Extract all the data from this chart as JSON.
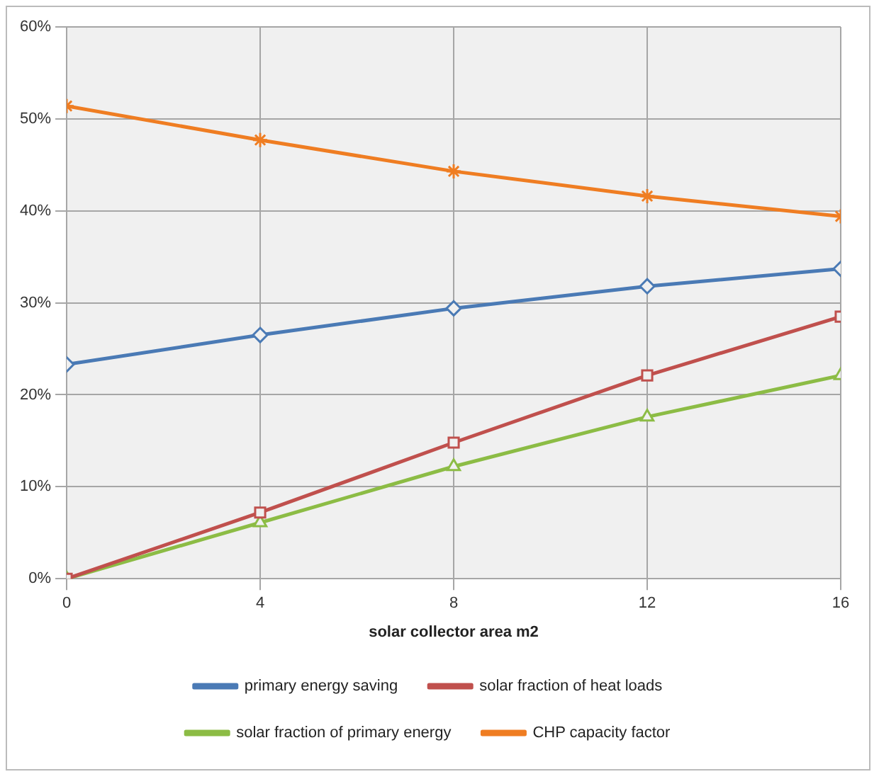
{
  "chart_data": {
    "type": "line",
    "xlabel": "solar collector area m2",
    "x": [
      0,
      4,
      8,
      12,
      16
    ],
    "xlim": [
      0,
      16
    ],
    "xticks": [
      0,
      4,
      8,
      12,
      16
    ],
    "ylim": [
      0,
      60
    ],
    "yticks": [
      {
        "value": 0,
        "label": "0%"
      },
      {
        "value": 10,
        "label": "10%"
      },
      {
        "value": 20,
        "label": "20%"
      },
      {
        "value": 30,
        "label": "30%"
      },
      {
        "value": 40,
        "label": "40%"
      },
      {
        "value": 50,
        "label": "50%"
      },
      {
        "value": 60,
        "label": "60%"
      }
    ],
    "grid": true,
    "legend": "bottom",
    "line_style": "solid",
    "series": [
      {
        "name": "primary energy saving",
        "color": "#4a7ab5",
        "marker": "diamond",
        "values": [
          23.3,
          26.5,
          29.4,
          31.8,
          33.7
        ]
      },
      {
        "name": "solar fraction of heat loads",
        "color": "#c0504d",
        "marker": "square",
        "values": [
          0,
          7.2,
          14.8,
          22.1,
          28.5
        ]
      },
      {
        "name": "solar fraction of primary energy",
        "color": "#8cbc45",
        "marker": "triangle",
        "values": [
          0,
          6.1,
          12.2,
          17.6,
          22.1
        ]
      },
      {
        "name": "CHP capacity factor",
        "color": "#ef7d22",
        "marker": "cross",
        "values": [
          51.4,
          47.7,
          44.3,
          41.6,
          39.4
        ]
      }
    ]
  }
}
